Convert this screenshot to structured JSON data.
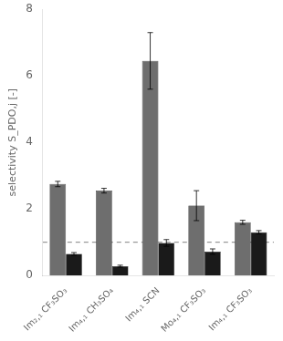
{
  "chart_data": {
    "type": "bar",
    "categories": [
      "Im₂,₁ CF₃SO₃",
      "Im₄,₁ CH₃SO₄",
      "Im₄,₁ SCN",
      "Mo₄,₁ CF₃SO₃",
      "Im₄,₁ CF₃SO₃"
    ],
    "series": [
      {
        "color": "#6e6e6e",
        "values": [
          2.75,
          2.55,
          6.45,
          2.1,
          1.6
        ],
        "errors": [
          0.08,
          0.07,
          0.85,
          0.45,
          0.06
        ]
      },
      {
        "color": "#1a1a1a",
        "values": [
          0.65,
          0.28,
          0.98,
          0.72,
          1.3
        ],
        "errors": [
          0.04,
          0.03,
          0.1,
          0.08,
          0.05
        ]
      }
    ],
    "reference_line": {
      "y": 1.0,
      "line_style": "dashed",
      "color": "gray"
    },
    "ylabel": "selectivity S_PDO,j [-]",
    "ylim": [
      0,
      8
    ],
    "yticks": [
      0,
      2,
      4,
      6,
      8
    ],
    "grid": false
  }
}
